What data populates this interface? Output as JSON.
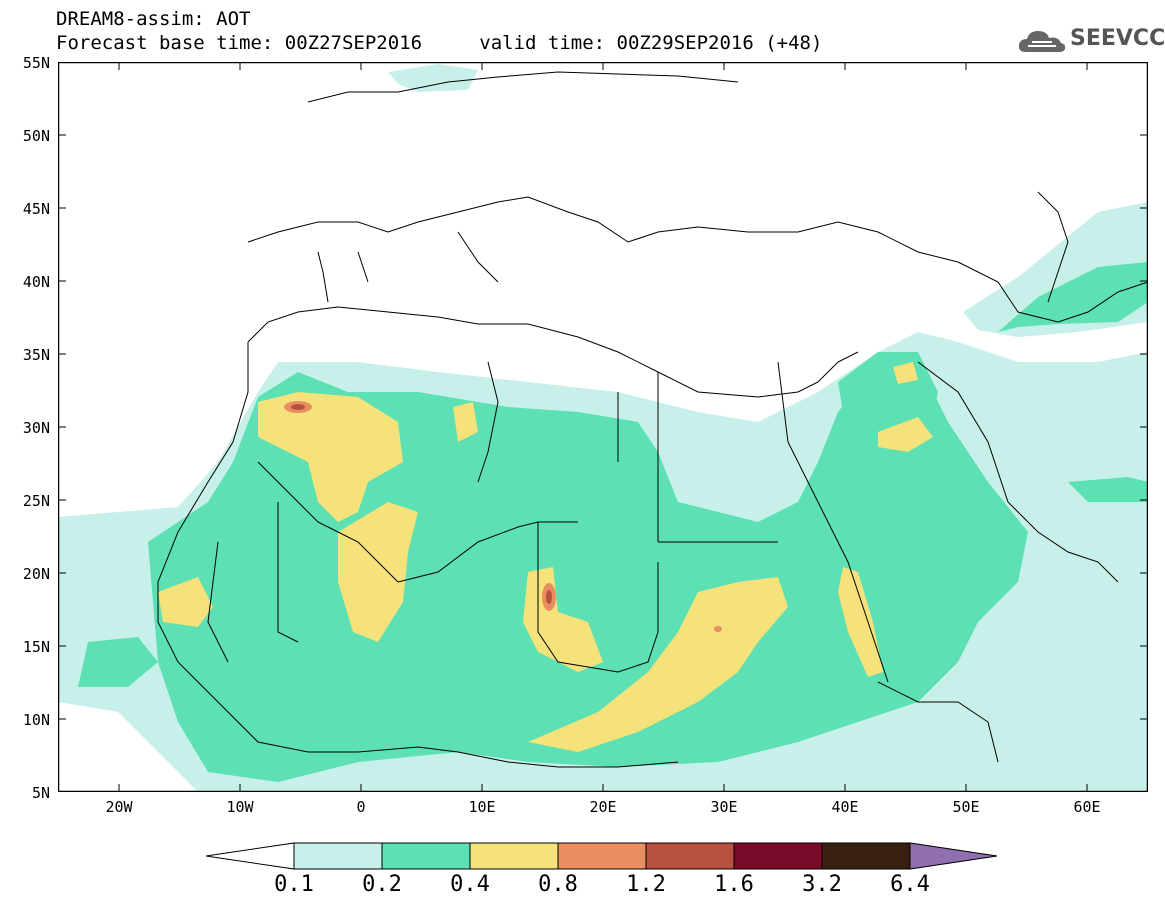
{
  "header": {
    "title": "DREAM8-assim: AOT",
    "subtitle_base": "Forecast base time: 00Z27SEP2016",
    "subtitle_valid": "valid time: 00Z29SEP2016 (+48)"
  },
  "logo": {
    "text": "SEEVCCC",
    "icon": "cloud-icon"
  },
  "map": {
    "lat_labels": [
      "55N",
      "50N",
      "45N",
      "40N",
      "35N",
      "30N",
      "25N",
      "20N",
      "15N",
      "10N",
      "5N"
    ],
    "lon_labels": [
      "20W",
      "10W",
      "0",
      "10E",
      "20E",
      "30E",
      "40E",
      "50E",
      "60E"
    ],
    "lat_range": [
      5,
      55
    ],
    "lon_range": [
      -25,
      65
    ]
  },
  "legend": {
    "levels": [
      "0.1",
      "0.2",
      "0.4",
      "0.8",
      "1.2",
      "1.6",
      "3.2",
      "6.4"
    ],
    "colors": [
      "#ffffff",
      "#c8f0ea",
      "#5ce0b4",
      "#f5e27a",
      "#e88e60",
      "#b85040",
      "#7a0a2a",
      "#3a2010",
      "#9070b0"
    ]
  }
}
